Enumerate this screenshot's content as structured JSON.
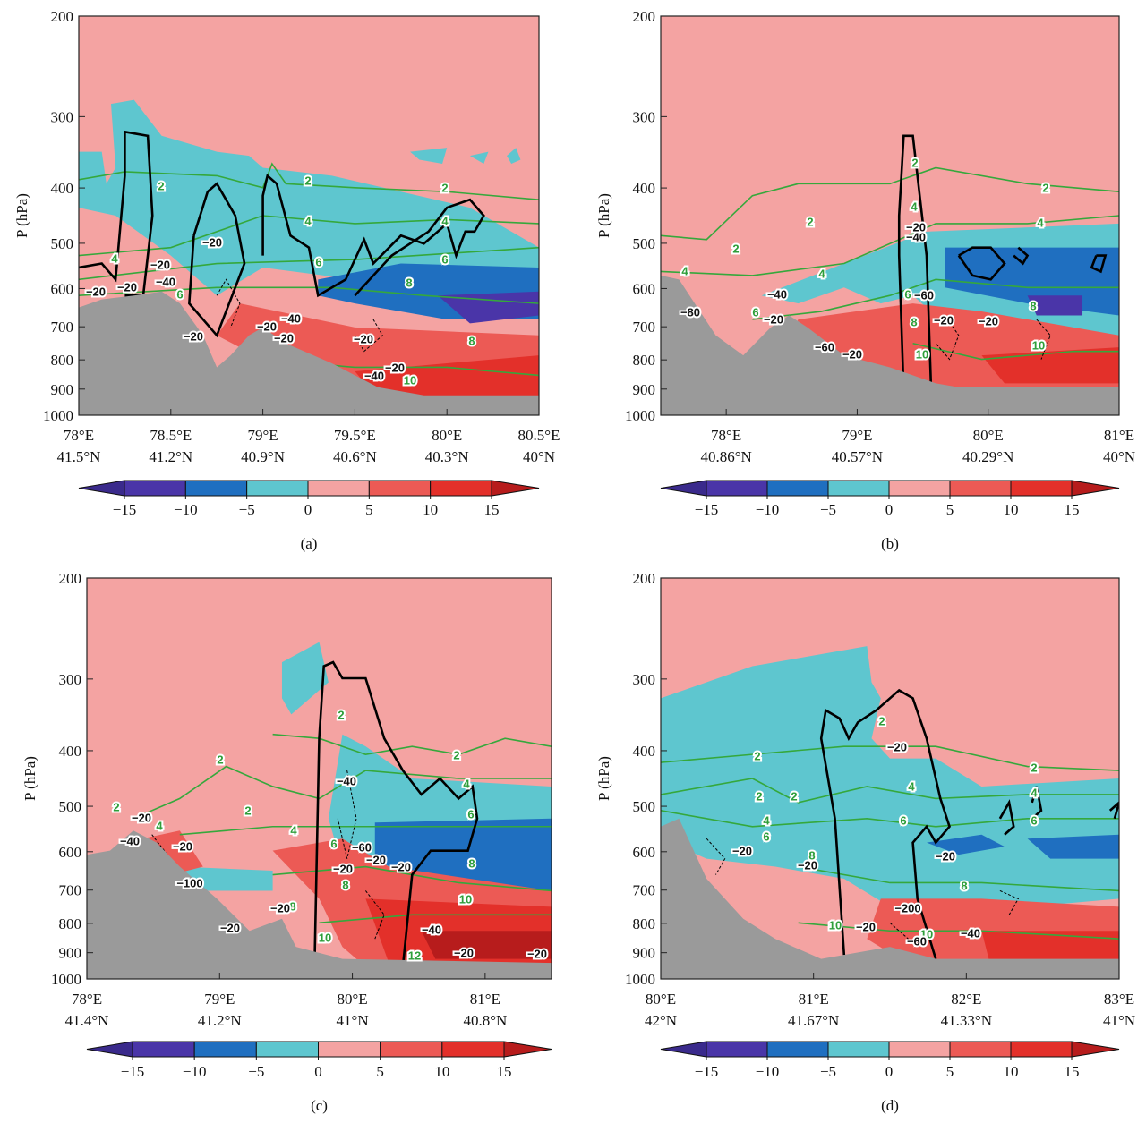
{
  "chart_data": [
    {
      "type": "contour",
      "panel_label": "(a)",
      "ylabel": "P (hPa)",
      "log_y": true,
      "ylim": [
        1000,
        200
      ],
      "yticks": [
        200,
        300,
        400,
        500,
        600,
        700,
        800,
        900,
        1000
      ],
      "xlim": [
        78,
        80.5
      ],
      "xticks": [
        {
          "value": 78,
          "label": "78°E"
        },
        {
          "value": 78.5,
          "label": "78.5°E"
        },
        {
          "value": 79,
          "label": "79°E"
        },
        {
          "value": 79.5,
          "label": "79.5°E"
        },
        {
          "value": 80,
          "label": "80°E"
        },
        {
          "value": 80.5,
          "label": "80.5°E"
        }
      ],
      "lat_labels": [
        "41.5°N",
        "41.2°N",
        "40.9°N",
        "40.6°N",
        "40.3°N",
        "40°N"
      ],
      "contour_labels": [
        "2",
        "2",
        "2",
        "4",
        "4",
        "4",
        "6",
        "6",
        "8",
        "6",
        "8",
        "10",
        "−20",
        "−20",
        "−40",
        "−20",
        "−20",
        "−40",
        "−20",
        "−20",
        "−20",
        "−20",
        "−20",
        "−40"
      ],
      "colorbar_ticks": [
        {
          "value": -15,
          "label": "−15"
        },
        {
          "value": -10,
          "label": "−10"
        },
        {
          "value": -5,
          "label": "−5"
        },
        0,
        5,
        10,
        15
      ],
      "colorbar_colors": [
        "#3a2a8c",
        "#4a35a8",
        "#1f6fc0",
        "#5ec6cf",
        "#f4a3a2",
        "#ec5a55",
        "#e3302a",
        "#b71c1c"
      ]
    },
    {
      "type": "contour",
      "panel_label": "(b)",
      "ylabel": "P (hPa)",
      "log_y": true,
      "ylim": [
        1000,
        200
      ],
      "yticks": [
        200,
        300,
        400,
        500,
        600,
        700,
        800,
        900,
        1000
      ],
      "xlim": [
        77.5,
        81
      ],
      "xticks": [
        {
          "value": 78,
          "label": "78°E"
        },
        {
          "value": 79,
          "label": "79°E"
        },
        {
          "value": 80,
          "label": "80°E"
        },
        {
          "value": 81,
          "label": "81°E"
        }
      ],
      "lat_labels": [
        "40.86°N",
        "40.57°N",
        "40.29°N",
        "40°N"
      ],
      "contour_labels": [
        "2",
        "2",
        "2",
        "2",
        "4",
        "4",
        "4",
        "4",
        "6",
        "6",
        "8",
        "8",
        "10",
        "10",
        "−20",
        "−40",
        "−40",
        "−60",
        "−20",
        "−20",
        "−20",
        "−60",
        "−20",
        "−80"
      ],
      "colorbar_ticks": [
        {
          "value": -15,
          "label": "−15"
        },
        {
          "value": -10,
          "label": "−10"
        },
        {
          "value": -5,
          "label": "−5"
        },
        0,
        5,
        10,
        15
      ],
      "colorbar_colors": [
        "#3a2a8c",
        "#4a35a8",
        "#1f6fc0",
        "#5ec6cf",
        "#f4a3a2",
        "#ec5a55",
        "#e3302a",
        "#b71c1c"
      ]
    },
    {
      "type": "contour",
      "panel_label": "(c)",
      "ylabel": "P (hPa)",
      "log_y": true,
      "ylim": [
        1000,
        200
      ],
      "yticks": [
        200,
        300,
        400,
        500,
        600,
        700,
        800,
        900,
        1000
      ],
      "xlim": [
        78,
        81.5
      ],
      "xticks": [
        {
          "value": 78,
          "label": "78°E"
        },
        {
          "value": 79,
          "label": "79°E"
        },
        {
          "value": 80,
          "label": "80°E"
        },
        {
          "value": 81,
          "label": "81°E"
        }
      ],
      "lat_labels": [
        "41.4°N",
        "41.2°N",
        "41°N",
        "40.8°N"
      ],
      "contour_labels": [
        "2",
        "2",
        "2",
        "2",
        "2",
        "4",
        "4",
        "4",
        "6",
        "6",
        "8",
        "8",
        "8",
        "10",
        "10",
        "12",
        "−20",
        "−40",
        "−20",
        "−40",
        "−60",
        "−20",
        "−20",
        "−20",
        "−20",
        "−40",
        "−20",
        "−20",
        "−20",
        "−100"
      ],
      "colorbar_ticks": [
        {
          "value": -15,
          "label": "−15"
        },
        {
          "value": -10,
          "label": "−10"
        },
        {
          "value": -5,
          "label": "−5"
        },
        0,
        5,
        10,
        15
      ],
      "colorbar_colors": [
        "#3a2a8c",
        "#4a35a8",
        "#1f6fc0",
        "#5ec6cf",
        "#f4a3a2",
        "#ec5a55",
        "#e3302a",
        "#b71c1c"
      ]
    },
    {
      "type": "contour",
      "panel_label": "(d)",
      "ylabel": "P (hPa)",
      "log_y": true,
      "ylim": [
        1000,
        200
      ],
      "yticks": [
        200,
        300,
        400,
        500,
        600,
        700,
        800,
        900,
        1000
      ],
      "xlim": [
        80,
        83
      ],
      "xticks": [
        {
          "value": 80,
          "label": "80°E"
        },
        {
          "value": 81,
          "label": "81°E"
        },
        {
          "value": 82,
          "label": "82°E"
        },
        {
          "value": 83,
          "label": "83°E"
        }
      ],
      "lat_labels": [
        "42°N",
        "41.67°N",
        "41.33°N",
        "41°N"
      ],
      "contour_labels": [
        "2",
        "2",
        "2",
        "2",
        "2",
        "4",
        "4",
        "4",
        "6",
        "6",
        "6",
        "8",
        "8",
        "10",
        "10",
        "−20",
        "−20",
        "−20",
        "−20",
        "−20",
        "−200",
        "−40",
        "−60"
      ],
      "colorbar_ticks": [
        {
          "value": -15,
          "label": "−15"
        },
        {
          "value": -10,
          "label": "−10"
        },
        {
          "value": -5,
          "label": "−5"
        },
        0,
        5,
        10,
        15
      ],
      "colorbar_colors": [
        "#3a2a8c",
        "#4a35a8",
        "#1f6fc0",
        "#5ec6cf",
        "#f4a3a2",
        "#ec5a55",
        "#e3302a",
        "#b71c1c"
      ]
    }
  ]
}
